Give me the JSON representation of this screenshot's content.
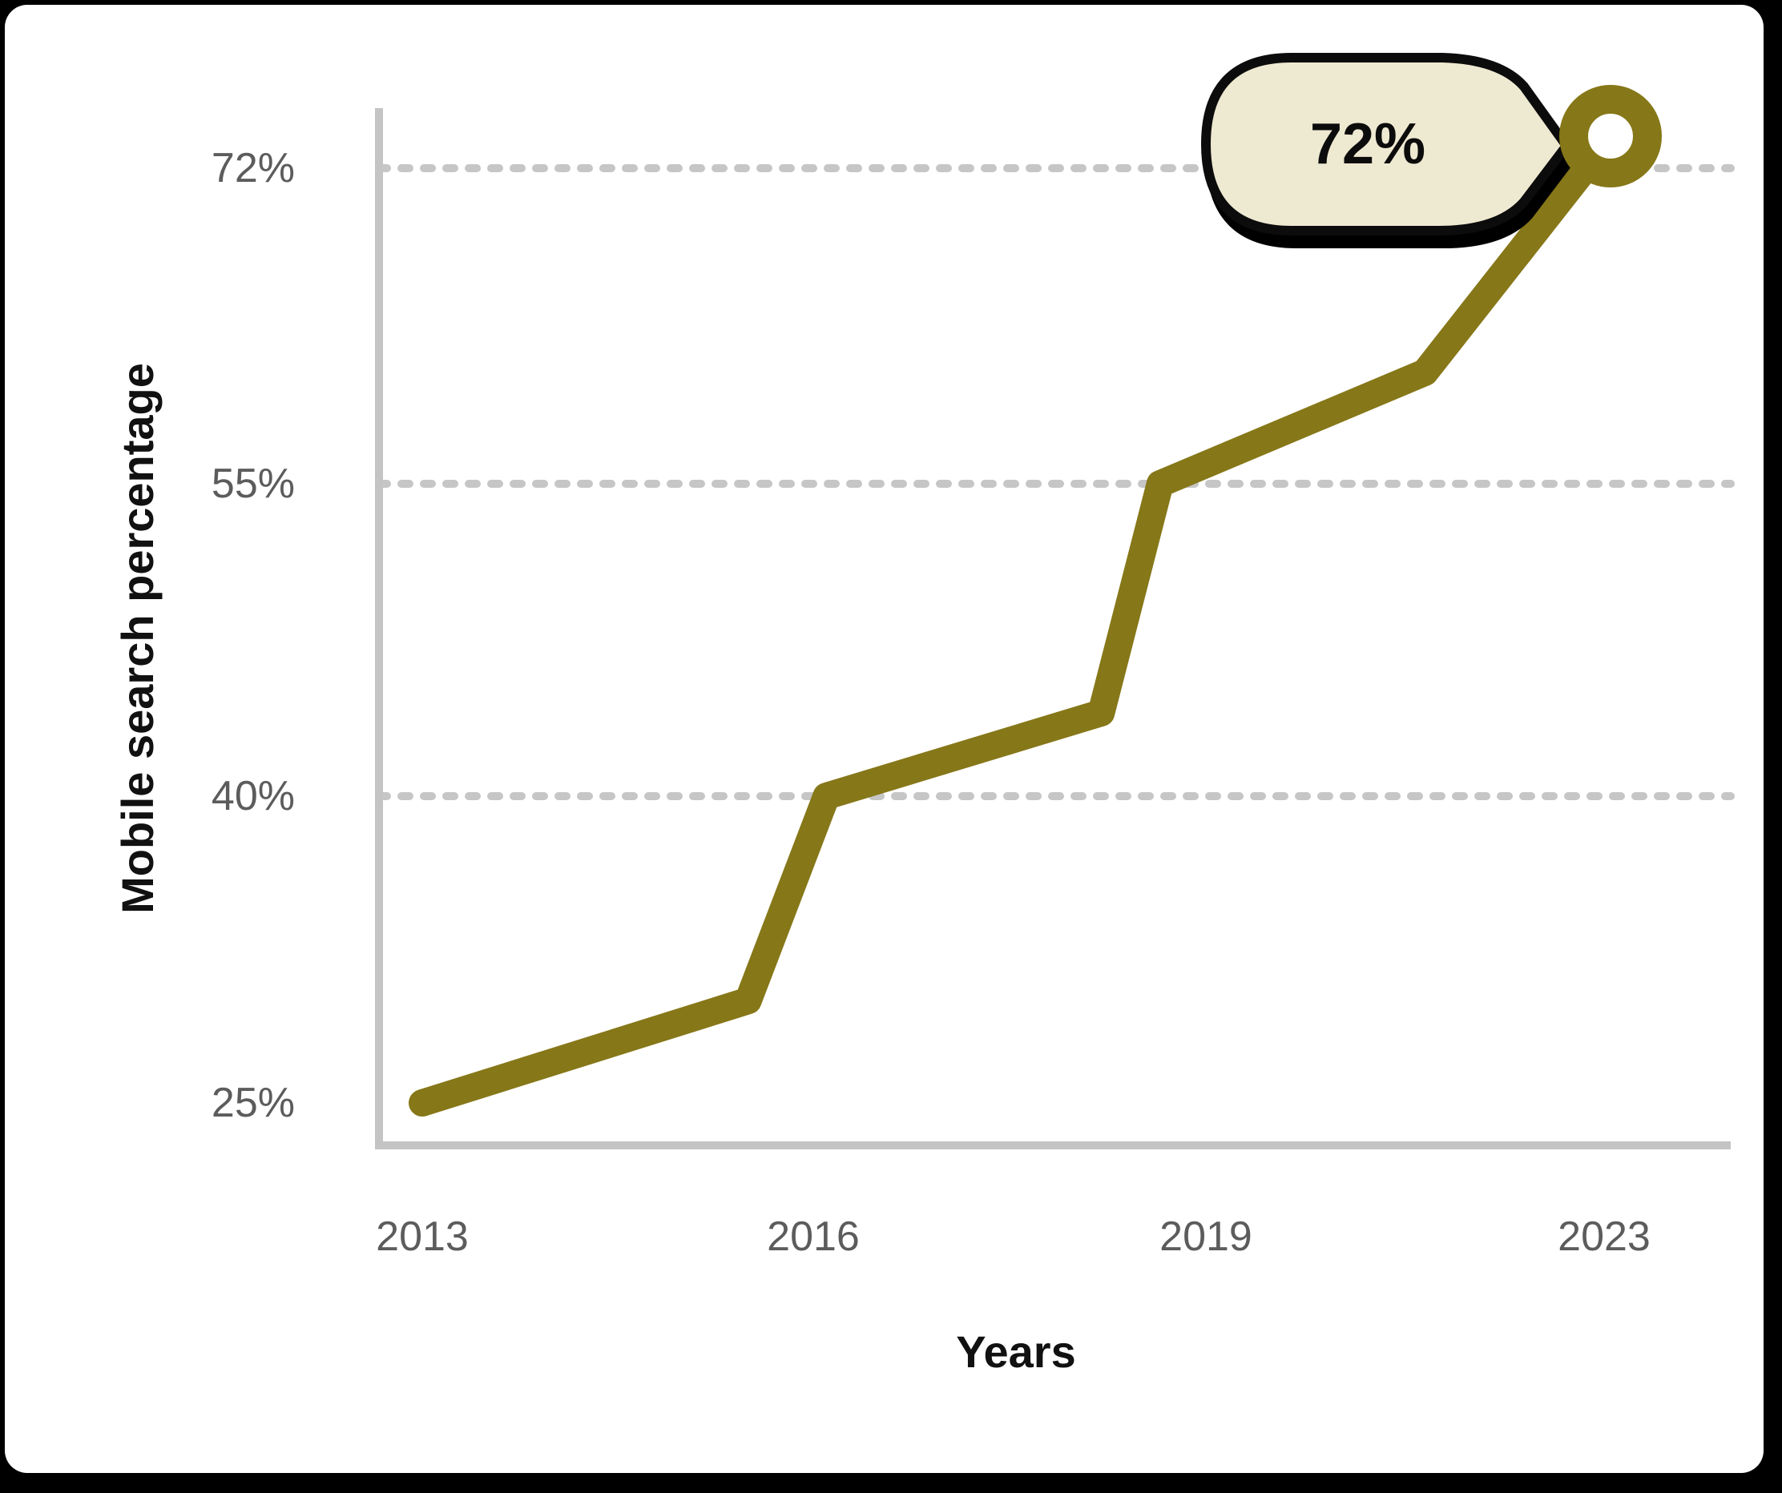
{
  "figure": {
    "frame_color": "#000000",
    "card_background": "#ffffff"
  },
  "chart_data": {
    "type": "line",
    "title": "",
    "xlabel": "Years",
    "ylabel": "Mobile search percentage",
    "x_ticks": [
      {
        "label": "2013",
        "year": 2013
      },
      {
        "label": "2016",
        "year": 2016
      },
      {
        "label": "2019",
        "year": 2019
      },
      {
        "label": "2023",
        "year": 2023
      }
    ],
    "y_ticks": [
      {
        "label": "72%",
        "value": 72
      },
      {
        "label": "55%",
        "value": 55
      },
      {
        "label": "40%",
        "value": 40
      },
      {
        "label": "25%",
        "value": 25
      }
    ],
    "gridline_values": [
      72,
      55,
      40
    ],
    "ylim": [
      23,
      76
    ],
    "grid": "dashed-horizontal",
    "series": [
      {
        "name": "Mobile search percentage",
        "points": [
          {
            "year": 2013,
            "value": 25
          },
          {
            "year": 2015.5,
            "value": 30
          },
          {
            "year": 2016.1,
            "value": 40
          },
          {
            "year": 2018.2,
            "value": 44
          },
          {
            "year": 2018.65,
            "value": 55
          },
          {
            "year": 2021.2,
            "value": 61
          },
          {
            "year": 2023,
            "value": 72
          }
        ]
      }
    ],
    "annotation": {
      "text": "72%",
      "year": 2023,
      "value": 72,
      "shape": "speech-bubble-right"
    },
    "colors": {
      "line": "#867718",
      "marker_ring": "#867718",
      "marker_hole": "#ffffff",
      "gridline": "#c6c6c6",
      "axis": "#c4c4c4",
      "tick_label": "#5c5c5c",
      "axis_title": "#111111",
      "bubble_fill": "#eee9d1",
      "bubble_border": "#0c0c0c"
    }
  }
}
